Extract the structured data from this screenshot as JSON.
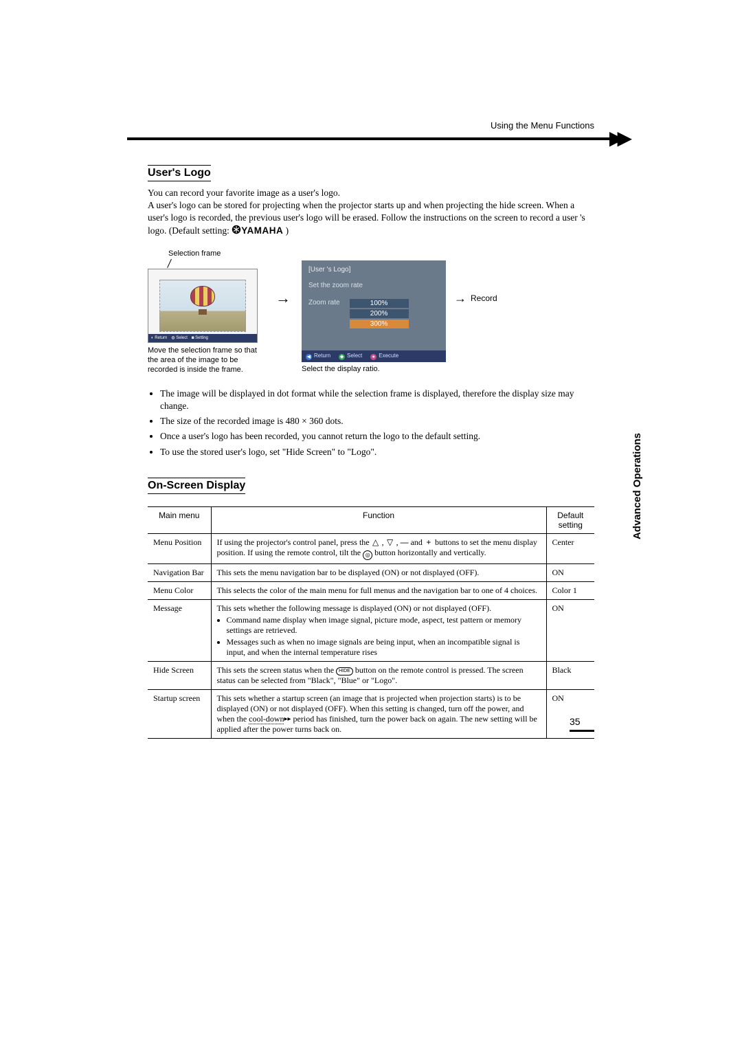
{
  "header": {
    "breadcrumb": "Using the Menu Functions"
  },
  "section1": {
    "title": "User's Logo",
    "p1": "You can record your favorite image as a user's logo.",
    "p2a": "A user's logo can be stored for projecting when the projector starts up and when projecting the hide screen. When a user's logo is recorded, the previous user's logo will be erased. Follow the instructions on the screen to record a user 's logo. (Default setting: ",
    "brand": "YAMAHA",
    "p2b": " )",
    "selFrameLabel": "Selection frame",
    "caption1": "Move the selection frame so that the area of the image to be recorded is inside the frame.",
    "zoomPanel": {
      "title": "[User 's Logo]",
      "subtitle": "Set the zoom rate",
      "rowLabel": "Zoom rate",
      "options": [
        "100%",
        "200%",
        "300%"
      ],
      "selectedIndex": 2,
      "footer": {
        "return": "Return",
        "select": "Select",
        "execute": "Execute"
      }
    },
    "caption2": "Select the display ratio.",
    "recordLabel": "Record",
    "bullets": [
      "The image will be displayed in dot format while the selection frame is displayed, therefore the display size may change.",
      "The size of the recorded image is 480 × 360 dots.",
      "Once a user's logo has been recorded, you cannot return the logo to the default setting.",
      "To use the stored user's logo, set \"Hide Screen\" to \"Logo\"."
    ]
  },
  "section2": {
    "title": "On-Screen Display",
    "columns": {
      "c1": "Main menu",
      "c2": "Function",
      "c3": "Default setting"
    },
    "rows": [
      {
        "main": "Menu Position",
        "fn_pre": "If using the projector's control panel, press the ",
        "fn_mid": " buttons to set the menu display position. If using the remote control, tilt the ",
        "fn_post": " button horizontally and vertically.",
        "def": "Center"
      },
      {
        "main": "Navigation Bar",
        "fn": "This sets the menu navigation bar to be displayed (ON) or not displayed (OFF).",
        "def": "ON"
      },
      {
        "main": "Menu Color",
        "fn": "This selects the color of the main menu for full menus and the navigation bar to one of 4 choices.",
        "def": "Color 1"
      },
      {
        "main": "Message",
        "fn_lead": "This sets whether the following message is displayed (ON) or not displayed (OFF).",
        "fn_items": [
          "Command name display when image signal, picture mode, aspect, test pattern or memory settings are retrieved.",
          "Messages such as when no image signals are being input, when an incompatible signal is input, and when the internal temperature rises"
        ],
        "def": "ON"
      },
      {
        "main": "Hide Screen",
        "fn_pre": "This sets the screen status when the ",
        "fn_post": " button on the remote control is pressed. The screen status can be selected from \"Black\", \"Blue\" or \"Logo\".",
        "def": "Black"
      },
      {
        "main": "Startup screen",
        "fn_pre": "This sets whether a startup screen (an image that is projected when projection starts) is to be displayed (ON) or not displayed (OFF). When this setting is changed, turn off the power, and when the ",
        "fn_link": "cool-down",
        "fn_post": " period has finished, turn the power back on again. The new setting will be applied after the power turns back on.",
        "def": "ON"
      }
    ]
  },
  "sideLabel": "Advanced Operations",
  "pageNumber": "35",
  "colors": {
    "panelBg": "#6a7a8a",
    "panelOptionBg": "#3e5570",
    "panelSelectedBg": "#d88a3a",
    "footerBarBg": "#2b3a66"
  }
}
